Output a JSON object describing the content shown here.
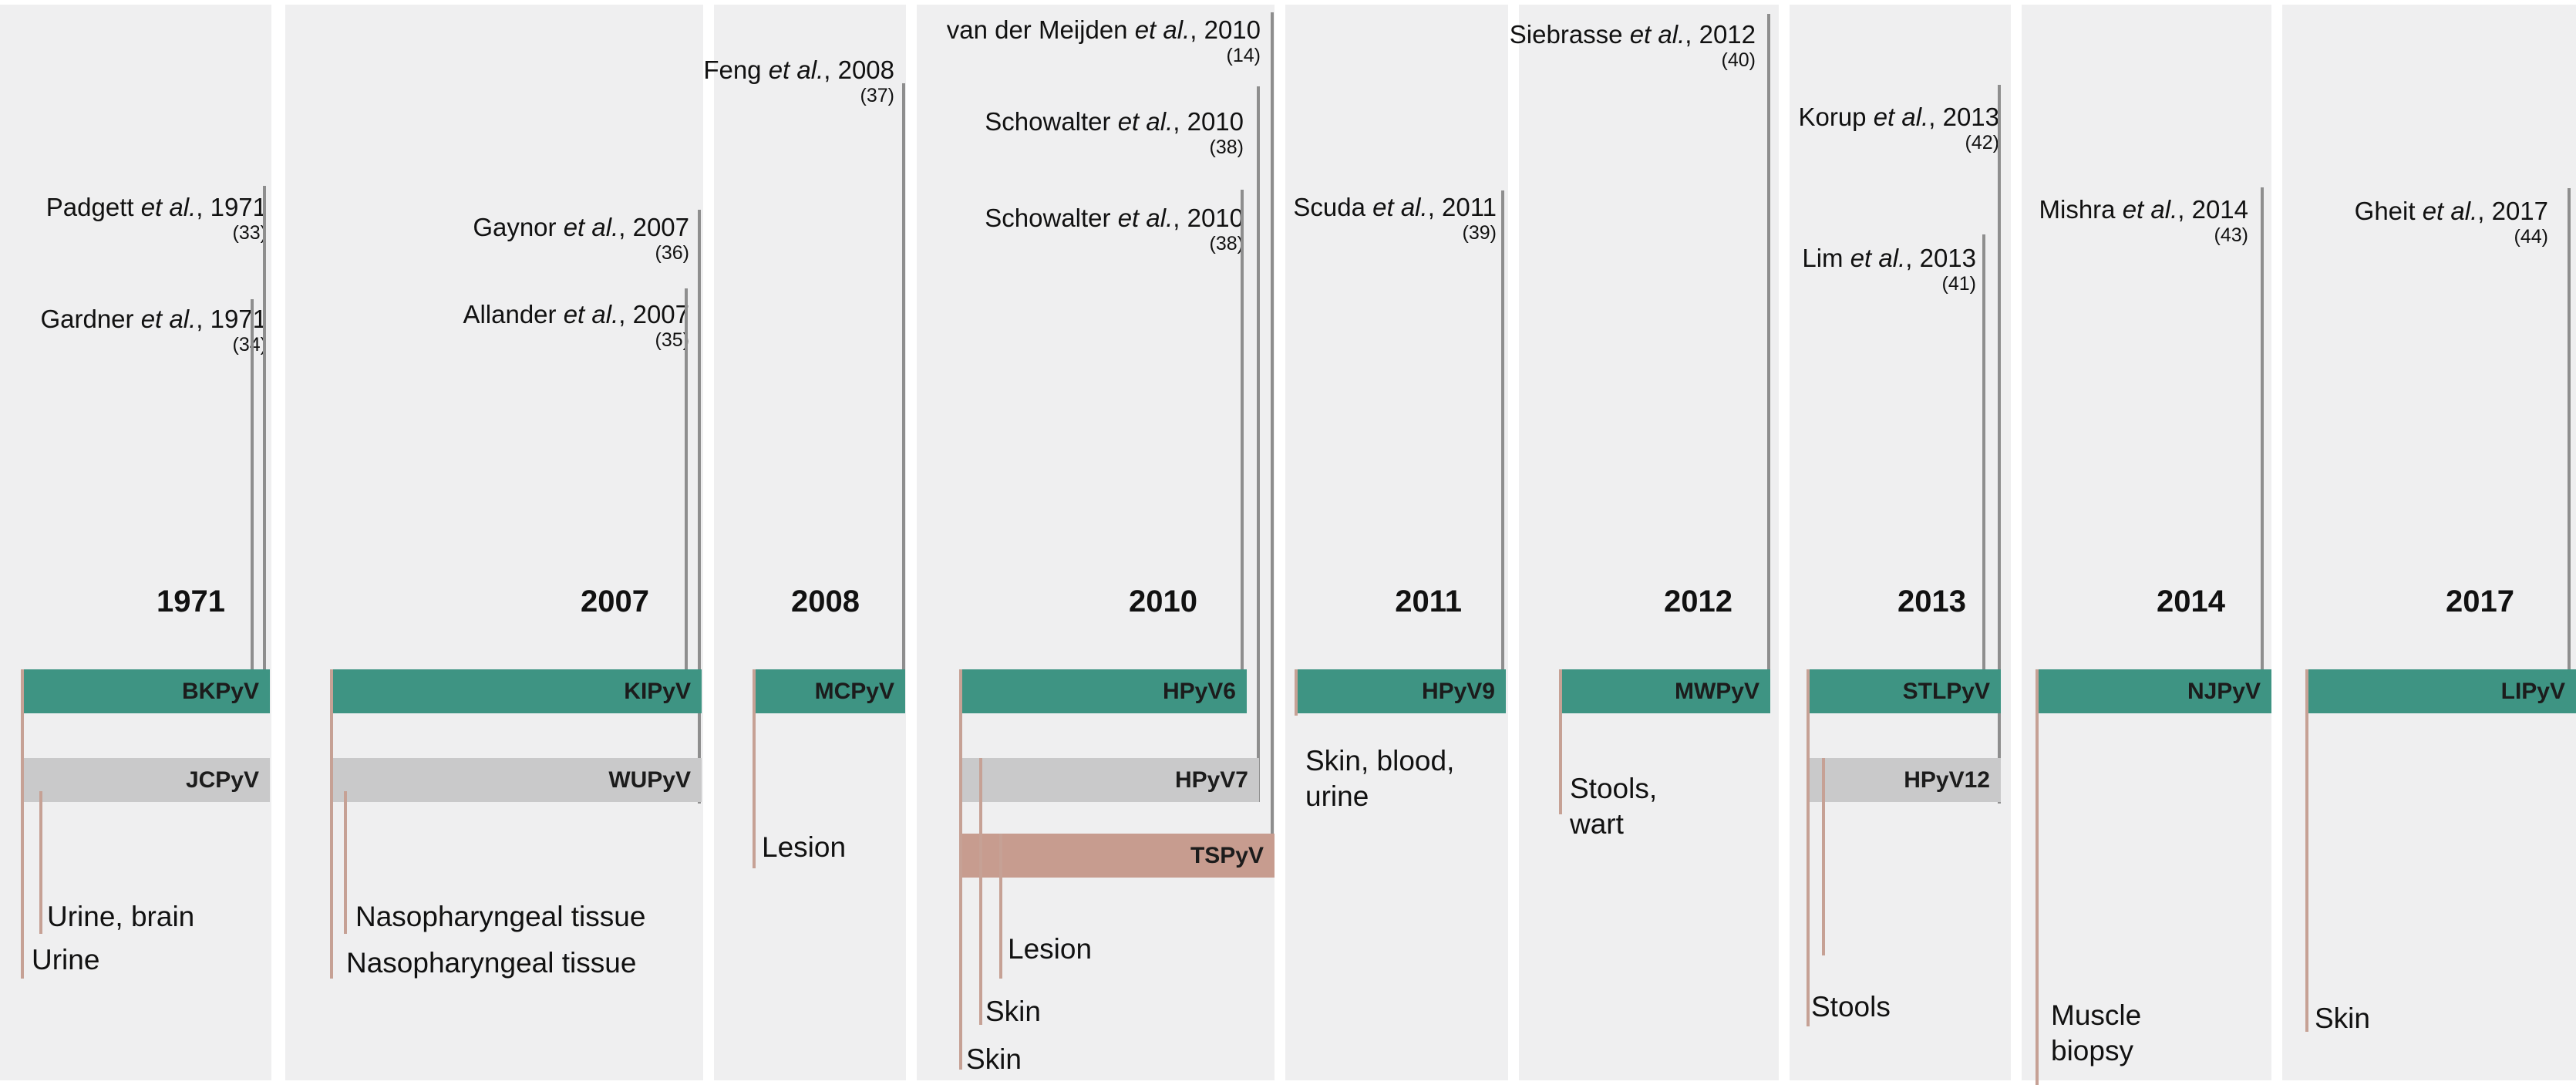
{
  "columns": [
    {
      "year": "1971",
      "refs": [
        {
          "author": "Padgett",
          "suffix": "et al.",
          "year_text": ", 1971",
          "num": "(33)"
        },
        {
          "author": "Gardner",
          "suffix": "et al.",
          "year_text": ", 1971",
          "num": "(34)"
        }
      ],
      "bars": [
        {
          "label": "BKPyV",
          "color": "green"
        },
        {
          "label": "JCPyV",
          "color": "grey"
        }
      ],
      "sources": [
        "Urine, brain",
        "Urine"
      ]
    },
    {
      "year": "2007",
      "refs": [
        {
          "author": "Gaynor",
          "suffix": "et al.",
          "year_text": ", 2007",
          "num": "(36)"
        },
        {
          "author": "Allander",
          "suffix": "et al.",
          "year_text": ", 2007",
          "num": "(35)"
        }
      ],
      "bars": [
        {
          "label": "KIPyV",
          "color": "green"
        },
        {
          "label": "WUPyV",
          "color": "grey"
        }
      ],
      "sources": [
        "Nasopharyngeal tissue",
        "Nasopharyngeal tissue"
      ]
    },
    {
      "year": "2008",
      "refs": [
        {
          "author": "Feng",
          "suffix": "et al.",
          "year_text": ", 2008",
          "num": "(37)"
        }
      ],
      "bars": [
        {
          "label": "MCPyV",
          "color": "green"
        }
      ],
      "sources": [
        "Lesion"
      ]
    },
    {
      "year": "2010",
      "refs": [
        {
          "author": "van der Meijden",
          "suffix": "et al.",
          "year_text": ", 2010",
          "num": "(14)"
        },
        {
          "author": "Schowalter",
          "suffix": "et al.",
          "year_text": ", 2010",
          "num": "(38)"
        },
        {
          "author": "Schowalter",
          "suffix": "et al.",
          "year_text": ", 2010",
          "num": "(38)"
        }
      ],
      "bars": [
        {
          "label": "HPyV6",
          "color": "green"
        },
        {
          "label": "HPyV7",
          "color": "grey"
        },
        {
          "label": "TSPyV",
          "color": "pink"
        }
      ],
      "sources": [
        "Lesion",
        "Skin",
        "Skin"
      ]
    },
    {
      "year": "2011",
      "refs": [
        {
          "author": "Scuda",
          "suffix": "et al.",
          "year_text": ", 2011",
          "num": "(39)"
        }
      ],
      "bars": [
        {
          "label": "HPyV9",
          "color": "green"
        }
      ],
      "sources": [
        "Skin, blood,\nurine"
      ]
    },
    {
      "year": "2012",
      "refs": [
        {
          "author": "Siebrasse",
          "suffix": "et al.",
          "year_text": ", 2012",
          "num": "(40)"
        }
      ],
      "bars": [
        {
          "label": "MWPyV",
          "color": "green"
        }
      ],
      "sources": [
        "Stools,\nwart"
      ]
    },
    {
      "year": "2013",
      "refs": [
        {
          "author": "Korup",
          "suffix": "et al.",
          "year_text": ", 2013",
          "num": "(42)"
        },
        {
          "author": "Lim",
          "suffix": "et al.",
          "year_text": ", 2013",
          "num": "(41)"
        }
      ],
      "bars": [
        {
          "label": "STLPyV",
          "color": "green"
        },
        {
          "label": "HPyV12",
          "color": "grey"
        }
      ],
      "sources": [
        "Stools"
      ]
    },
    {
      "year": "2014",
      "refs": [
        {
          "author": "Mishra",
          "suffix": "et al.",
          "year_text": ", 2014",
          "num": "(43)"
        }
      ],
      "bars": [
        {
          "label": "NJPyV",
          "color": "green"
        }
      ],
      "sources": [
        "Muscle\nbiopsy"
      ]
    },
    {
      "year": "2017",
      "refs": [
        {
          "author": "Gheit",
          "suffix": "et al.",
          "year_text": ", 2017",
          "num": "(44)"
        }
      ],
      "bars": [
        {
          "label": "LIPyV",
          "color": "green"
        }
      ],
      "sources": [
        "Skin"
      ]
    }
  ],
  "colors": {
    "green": "#3e9483",
    "grey": "#c9c9ca",
    "pink": "#c79c8f",
    "column_bg": "#efeff0",
    "ref_line": "#8e8e8e",
    "source_line": "#c6a195"
  }
}
